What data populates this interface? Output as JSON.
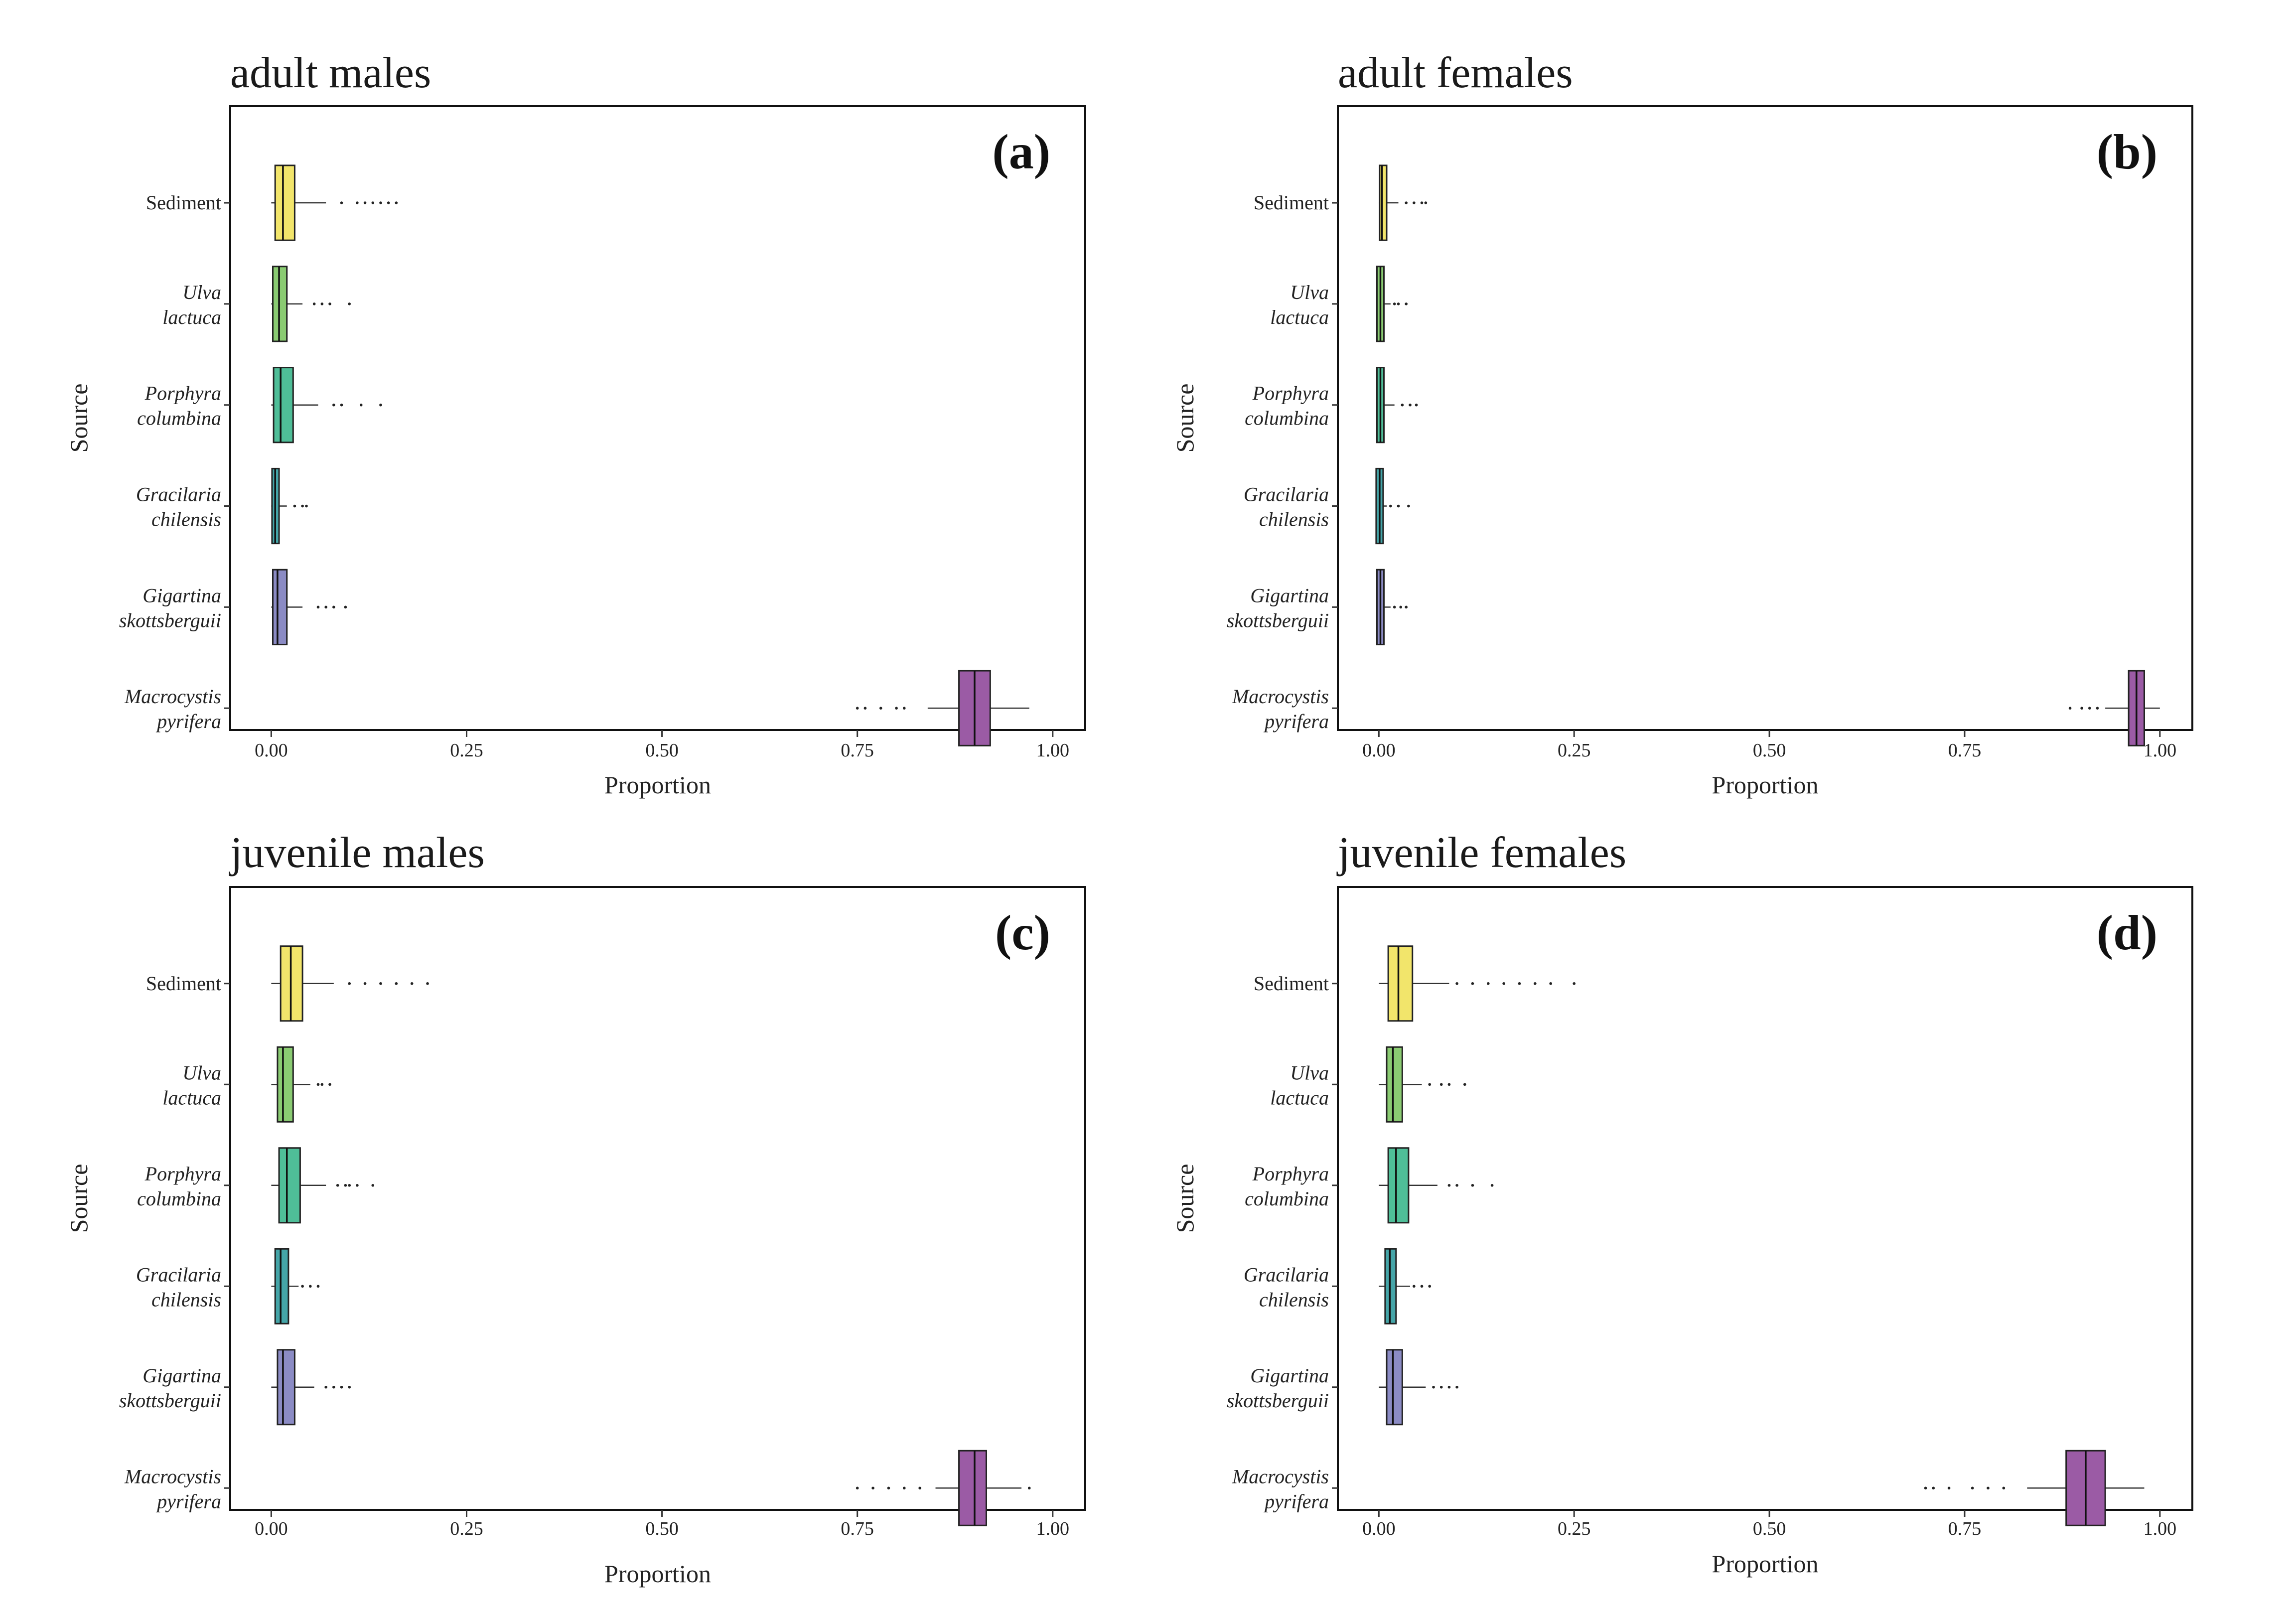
{
  "chart_data": [
    {
      "type": "boxplot",
      "title": "adult males",
      "tag": "(a)",
      "xlabel": "Proportion",
      "ylabel": "Source",
      "xlim": [
        0,
        1
      ],
      "ticks": [
        "0.00",
        "0.25",
        "0.50",
        "0.75",
        "1.00"
      ],
      "tick_values": [
        0,
        0.25,
        0.5,
        0.75,
        1.0
      ],
      "sources": [
        {
          "label": [
            "Sediment"
          ],
          "italic": false,
          "color": "#F2E56B",
          "min": 0.0,
          "q1": 0.005,
          "median": 0.015,
          "q3": 0.03,
          "max": 0.07,
          "outliers": [
            0.09,
            0.11,
            0.12,
            0.13,
            0.14,
            0.15,
            0.16
          ]
        },
        {
          "label": [
            "Ulva",
            "lactuca"
          ],
          "italic": true,
          "color": "#8ACB72",
          "min": 0.0,
          "q1": 0.002,
          "median": 0.01,
          "q3": 0.02,
          "max": 0.04,
          "outliers": [
            0.055,
            0.065,
            0.075,
            0.1
          ]
        },
        {
          "label": [
            "Porphyra",
            "columbina"
          ],
          "italic": true,
          "color": "#4FBE98",
          "min": 0.0,
          "q1": 0.003,
          "median": 0.012,
          "q3": 0.028,
          "max": 0.06,
          "outliers": [
            0.08,
            0.09,
            0.115,
            0.14
          ]
        },
        {
          "label": [
            "Gracilaria",
            "chilensis"
          ],
          "italic": true,
          "color": "#45A5A8",
          "min": 0.0,
          "q1": 0.001,
          "median": 0.005,
          "q3": 0.01,
          "max": 0.02,
          "outliers": [
            0.03,
            0.04,
            0.045
          ]
        },
        {
          "label": [
            "Gigartina",
            "skottsberguii"
          ],
          "italic": true,
          "color": "#8B8BC4",
          "min": 0.0,
          "q1": 0.002,
          "median": 0.008,
          "q3": 0.02,
          "max": 0.04,
          "outliers": [
            0.06,
            0.07,
            0.08,
            0.095
          ]
        },
        {
          "label": [
            "Macrocystis",
            "pyrifera"
          ],
          "italic": true,
          "color": "#9B5BA5",
          "min": 0.84,
          "q1": 0.88,
          "median": 0.9,
          "q3": 0.92,
          "max": 0.97,
          "outliers": [
            0.75,
            0.76,
            0.78,
            0.8,
            0.81
          ]
        }
      ]
    },
    {
      "type": "boxplot",
      "title": "adult females",
      "tag": "(b)",
      "xlabel": "Proportion",
      "ylabel": "Source",
      "xlim": [
        0,
        1
      ],
      "ticks": [
        "0.00",
        "0.25",
        "0.50",
        "0.75",
        "1.00"
      ],
      "tick_values": [
        0,
        0.25,
        0.5,
        0.75,
        1.0
      ],
      "sources": [
        {
          "label": [
            "Sediment"
          ],
          "italic": false,
          "color": "#F2E56B",
          "min": 0.0,
          "q1": 0.001,
          "median": 0.004,
          "q3": 0.01,
          "max": 0.025,
          "outliers": [
            0.035,
            0.045,
            0.055,
            0.06
          ]
        },
        {
          "label": [
            "Ulva",
            "lactuca"
          ],
          "italic": true,
          "color": "#8ACB72",
          "min": 0.0,
          "q1": 0.0,
          "median": 0.002,
          "q3": 0.006,
          "max": 0.015,
          "outliers": [
            0.02,
            0.025,
            0.035
          ]
        },
        {
          "label": [
            "Porphyra",
            "columbina"
          ],
          "italic": true,
          "color": "#4FBE98",
          "min": 0.0,
          "q1": 0.0,
          "median": 0.002,
          "q3": 0.007,
          "max": 0.02,
          "outliers": [
            0.03,
            0.04,
            0.048
          ]
        },
        {
          "label": [
            "Gracilaria",
            "chilensis"
          ],
          "italic": true,
          "color": "#45A5A8",
          "min": 0.0,
          "q1": 0.0,
          "median": 0.001,
          "q3": 0.004,
          "max": 0.01,
          "outliers": [
            0.015,
            0.025,
            0.038
          ]
        },
        {
          "label": [
            "Gigartina",
            "skottsberguii"
          ],
          "italic": true,
          "color": "#8B8BC4",
          "min": 0.0,
          "q1": 0.0,
          "median": 0.002,
          "q3": 0.005,
          "max": 0.015,
          "outliers": [
            0.02,
            0.028,
            0.035
          ]
        },
        {
          "label": [
            "Macrocystis",
            "pyrifera"
          ],
          "italic": true,
          "color": "#9B5BA5",
          "min": 0.93,
          "q1": 0.96,
          "median": 0.97,
          "q3": 0.98,
          "max": 1.0,
          "outliers": [
            0.885,
            0.9,
            0.91,
            0.92
          ]
        }
      ]
    },
    {
      "type": "boxplot",
      "title": "juvenile males",
      "tag": "(c)",
      "xlabel": "Proportion",
      "ylabel": "Source",
      "xlim": [
        0,
        1
      ],
      "ticks": [
        "0.00",
        "0.25",
        "0.50",
        "0.75",
        "1.00"
      ],
      "tick_values": [
        0,
        0.25,
        0.5,
        0.75,
        1.0
      ],
      "sources": [
        {
          "label": [
            "Sediment"
          ],
          "italic": false,
          "color": "#F2E56B",
          "min": 0.0,
          "q1": 0.012,
          "median": 0.025,
          "q3": 0.04,
          "max": 0.08,
          "outliers": [
            0.1,
            0.12,
            0.14,
            0.16,
            0.18,
            0.2
          ]
        },
        {
          "label": [
            "Ulva",
            "lactuca"
          ],
          "italic": true,
          "color": "#8ACB72",
          "min": 0.0,
          "q1": 0.008,
          "median": 0.015,
          "q3": 0.028,
          "max": 0.05,
          "outliers": [
            0.06,
            0.065,
            0.075
          ]
        },
        {
          "label": [
            "Porphyra",
            "columbina"
          ],
          "italic": true,
          "color": "#4FBE98",
          "min": 0.0,
          "q1": 0.01,
          "median": 0.02,
          "q3": 0.037,
          "max": 0.07,
          "outliers": [
            0.085,
            0.095,
            0.1,
            0.11,
            0.13
          ]
        },
        {
          "label": [
            "Gracilaria",
            "chilensis"
          ],
          "italic": true,
          "color": "#45A5A8",
          "min": 0.0,
          "q1": 0.005,
          "median": 0.012,
          "q3": 0.022,
          "max": 0.035,
          "outliers": [
            0.04,
            0.05,
            0.06
          ]
        },
        {
          "label": [
            "Gigartina",
            "skottsberguii"
          ],
          "italic": true,
          "color": "#8B8BC4",
          "min": 0.0,
          "q1": 0.008,
          "median": 0.015,
          "q3": 0.03,
          "max": 0.055,
          "outliers": [
            0.07,
            0.08,
            0.09,
            0.1
          ]
        },
        {
          "label": [
            "Macrocystis",
            "pyrifera"
          ],
          "italic": true,
          "color": "#9B5BA5",
          "min": 0.85,
          "q1": 0.88,
          "median": 0.9,
          "q3": 0.915,
          "max": 0.96,
          "outliers": [
            0.75,
            0.77,
            0.79,
            0.81,
            0.83,
            0.97
          ]
        }
      ]
    },
    {
      "type": "boxplot",
      "title": "juvenile females",
      "tag": "(d)",
      "xlabel": "Proportion",
      "ylabel": "Source",
      "xlim": [
        0,
        1
      ],
      "ticks": [
        "0.00",
        "0.25",
        "0.50",
        "0.75",
        "1.00"
      ],
      "tick_values": [
        0,
        0.25,
        0.5,
        0.75,
        1.0
      ],
      "sources": [
        {
          "label": [
            "Sediment"
          ],
          "italic": false,
          "color": "#F2E56B",
          "min": 0.0,
          "q1": 0.012,
          "median": 0.025,
          "q3": 0.043,
          "max": 0.09,
          "outliers": [
            0.1,
            0.12,
            0.14,
            0.16,
            0.18,
            0.2,
            0.22,
            0.25
          ]
        },
        {
          "label": [
            "Ulva",
            "lactuca"
          ],
          "italic": true,
          "color": "#8ACB72",
          "min": 0.0,
          "q1": 0.01,
          "median": 0.018,
          "q3": 0.03,
          "max": 0.055,
          "outliers": [
            0.065,
            0.08,
            0.09,
            0.11
          ]
        },
        {
          "label": [
            "Porphyra",
            "columbina"
          ],
          "italic": true,
          "color": "#4FBE98",
          "min": 0.0,
          "q1": 0.012,
          "median": 0.022,
          "q3": 0.038,
          "max": 0.075,
          "outliers": [
            0.09,
            0.1,
            0.12,
            0.145
          ]
        },
        {
          "label": [
            "Gracilaria",
            "chilensis"
          ],
          "italic": true,
          "color": "#45A5A8",
          "min": 0.0,
          "q1": 0.008,
          "median": 0.014,
          "q3": 0.022,
          "max": 0.04,
          "outliers": [
            0.045,
            0.055,
            0.065
          ]
        },
        {
          "label": [
            "Gigartina",
            "skottsberguii"
          ],
          "italic": true,
          "color": "#8B8BC4",
          "min": 0.0,
          "q1": 0.01,
          "median": 0.018,
          "q3": 0.03,
          "max": 0.06,
          "outliers": [
            0.07,
            0.08,
            0.09,
            0.1
          ]
        },
        {
          "label": [
            "Macrocystis",
            "pyrifera"
          ],
          "italic": true,
          "color": "#9B5BA5",
          "min": 0.83,
          "q1": 0.88,
          "median": 0.905,
          "q3": 0.93,
          "max": 0.98,
          "outliers": [
            0.7,
            0.71,
            0.73,
            0.76,
            0.78,
            0.8
          ]
        }
      ]
    }
  ]
}
